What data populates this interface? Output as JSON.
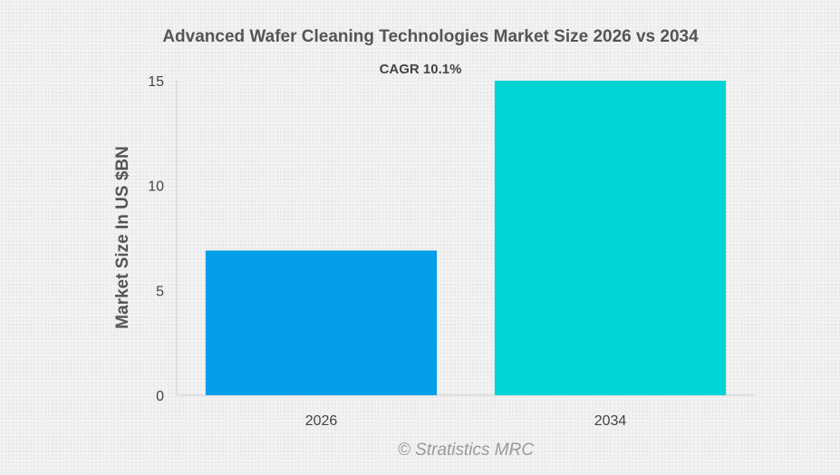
{
  "chart_data": {
    "type": "bar",
    "title": "Advanced Wafer Cleaning Technologies Market Size 2026 vs 2034",
    "annotation": "CAGR 10.1%",
    "xlabel": "",
    "ylabel": "Market Size In US $BN",
    "categories": [
      "2026",
      "2034"
    ],
    "values": [
      6.9,
      15.0
    ],
    "colors": [
      "#049ee9",
      "#00d4d4"
    ],
    "ylim": [
      0,
      15
    ],
    "yticks": [
      0,
      5,
      10,
      15
    ],
    "grid": false,
    "legend": "none"
  },
  "credit": "© Stratistics MRC"
}
